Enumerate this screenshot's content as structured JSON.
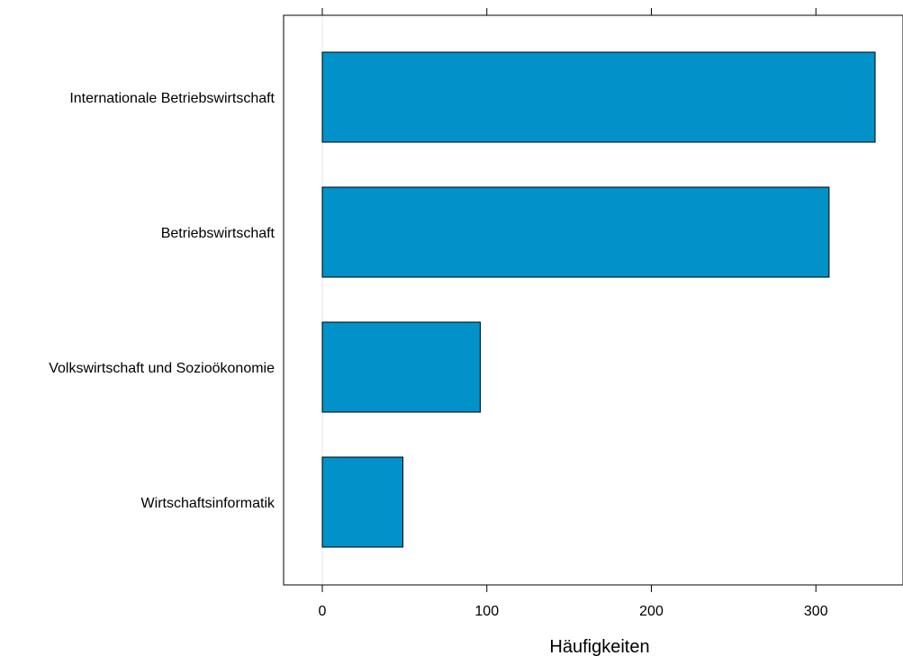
{
  "chart_data": {
    "type": "bar",
    "orientation": "horizontal",
    "categories": [
      "Internationale Betriebswirtschaft",
      "Betriebswirtschaft",
      "Volkswirtschaft und Sozioökonomie",
      "Wirtschaftsinformatik"
    ],
    "values": [
      336,
      308,
      96,
      49
    ],
    "xlabel": "Häufigkeiten",
    "ylabel": "",
    "xlim": [
      -23.5,
      354
    ],
    "xticks": [
      0,
      100,
      200,
      300
    ],
    "xtick_labels": [
      "0",
      "100",
      "200",
      "300"
    ],
    "bar_color": "#0291c9",
    "grid": false,
    "reference_line": 0
  }
}
